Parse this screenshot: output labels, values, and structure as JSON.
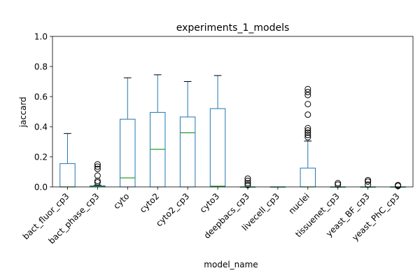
{
  "chart_data": {
    "type": "boxplot",
    "title": "experiments_1_models",
    "xlabel": "model_name",
    "ylabel": "jaccard",
    "ylim": [
      0,
      1.0
    ],
    "yticks": [
      "0.0",
      "0.2",
      "0.4",
      "0.6",
      "0.8",
      "1.0"
    ],
    "grid": false,
    "colors": {
      "box": "#1f77b4",
      "median": "#2ca02c",
      "whisker": "#1f77b4",
      "cap": "#000000",
      "flier": "#000000"
    },
    "categories": [
      "bact_fluor_cp3",
      "bact_phase_cp3",
      "cyto",
      "cyto2",
      "cyto2_cp3",
      "cyto3",
      "deepbacs_cp3",
      "livecell_cp3",
      "nuclei",
      "tissuenet_cp3",
      "yeast_BF_cp3",
      "yeast_PhC_cp3"
    ],
    "boxes": [
      {
        "name": "bact_fluor_cp3",
        "whislo": 0,
        "q1": 0,
        "med": 0,
        "q3": 0.155,
        "whishi": 0.355,
        "fliers": []
      },
      {
        "name": "bact_phase_cp3",
        "whislo": 0,
        "q1": 0,
        "med": 0.003,
        "q3": 0.007,
        "whishi": 0.012,
        "fliers": [
          0.15,
          0.135,
          0.12,
          0.075,
          0.04,
          0.03
        ]
      },
      {
        "name": "cyto",
        "whislo": 0,
        "q1": 0,
        "med": 0.06,
        "q3": 0.45,
        "whishi": 0.725,
        "fliers": []
      },
      {
        "name": "cyto2",
        "whislo": 0,
        "q1": 0,
        "med": 0.25,
        "q3": 0.495,
        "whishi": 0.745,
        "fliers": []
      },
      {
        "name": "cyto2_cp3",
        "whislo": 0,
        "q1": 0,
        "med": 0.36,
        "q3": 0.465,
        "whishi": 0.7,
        "fliers": []
      },
      {
        "name": "cyto3",
        "whislo": 0,
        "q1": 0,
        "med": 0.005,
        "q3": 0.52,
        "whishi": 0.74,
        "fliers": []
      },
      {
        "name": "deepbacs_cp3",
        "whislo": 0,
        "q1": 0,
        "med": 0,
        "q3": 0,
        "whishi": 0,
        "fliers": [
          0.055,
          0.04,
          0.025,
          0.012
        ]
      },
      {
        "name": "livecell_cp3",
        "whislo": 0,
        "q1": 0,
        "med": 0,
        "q3": 0,
        "whishi": 0,
        "fliers": []
      },
      {
        "name": "nuclei",
        "whislo": 0,
        "q1": 0,
        "med": 0,
        "q3": 0.125,
        "whishi": 0.305,
        "fliers": [
          0.65,
          0.63,
          0.61,
          0.55,
          0.48,
          0.39,
          0.375,
          0.36,
          0.345,
          0.33
        ]
      },
      {
        "name": "tissuenet_cp3",
        "whislo": 0,
        "q1": 0,
        "med": 0,
        "q3": 0,
        "whishi": 0,
        "fliers": [
          0.025,
          0.015
        ]
      },
      {
        "name": "yeast_BF_cp3",
        "whislo": 0,
        "q1": 0,
        "med": 0,
        "q3": 0,
        "whishi": 0,
        "fliers": [
          0.045,
          0.035,
          0.015
        ]
      },
      {
        "name": "yeast_PhC_cp3",
        "whislo": 0,
        "q1": 0,
        "med": 0,
        "q3": 0,
        "whishi": 0,
        "fliers": [
          0.012,
          0.006
        ]
      }
    ]
  }
}
